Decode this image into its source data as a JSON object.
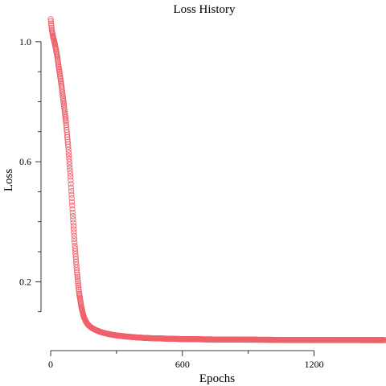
{
  "chart_data": {
    "type": "scatter",
    "title": "Loss History",
    "xlabel": "Epochs",
    "ylabel": "Loss",
    "xlim": [
      0,
      1520
    ],
    "ylim": [
      0,
      1.08
    ],
    "x_ticks": [
      0,
      600,
      1200
    ],
    "x_tick_labels": [
      "0",
      "600",
      "1200"
    ],
    "x_minor_ticks": [
      300,
      900
    ],
    "y_ticks": [
      0.2,
      0.6,
      1.0
    ],
    "y_tick_labels": [
      "0.2",
      "0.6",
      "1.0"
    ],
    "y_minor_ticks": [
      0.1,
      0.3,
      0.4,
      0.5,
      0.7,
      0.8,
      0.9
    ],
    "grid": false,
    "marker": "open-circle",
    "marker_color": "#f0616b",
    "series": [
      {
        "x": [
          0,
          5,
          10,
          20,
          30,
          40,
          50,
          60,
          70,
          80,
          90,
          100,
          110,
          120,
          130,
          140,
          150,
          160,
          170,
          180,
          190,
          200,
          215,
          230,
          250,
          275,
          300,
          350,
          400,
          450,
          500,
          600,
          700,
          800,
          900,
          1000,
          1100,
          1200,
          1300,
          1400,
          1520
        ],
        "y": [
          1.075,
          1.04,
          1.02,
          0.99,
          0.95,
          0.9,
          0.85,
          0.79,
          0.73,
          0.65,
          0.55,
          0.43,
          0.32,
          0.23,
          0.16,
          0.115,
          0.085,
          0.068,
          0.057,
          0.05,
          0.045,
          0.041,
          0.036,
          0.032,
          0.028,
          0.024,
          0.021,
          0.017,
          0.014,
          0.012,
          0.011,
          0.009,
          0.008,
          0.0075,
          0.007,
          0.0065,
          0.0062,
          0.006,
          0.0058,
          0.0056,
          0.0055
        ]
      }
    ]
  }
}
